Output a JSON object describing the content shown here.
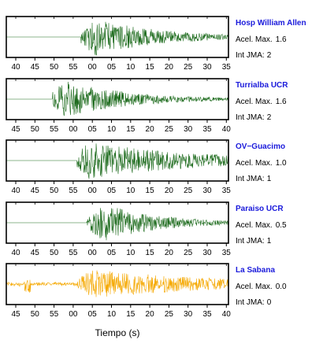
{
  "chart_data": {
    "type": "line",
    "title": "",
    "xlabel": "Tiempo (s)",
    "ylabel": "",
    "grid": false,
    "panels": [
      {
        "station": "Hosp William Allen",
        "name_color": "#1a1adb",
        "trace_color": "#1d6b1d",
        "accel_label": "Acel. Max.",
        "accel_value": "1.6",
        "jma_label": "Int JMA:",
        "jma_value": "2",
        "tick_labels": [
          "40",
          "45",
          "50",
          "55",
          "00",
          "05",
          "10",
          "15",
          "20",
          "25",
          "30",
          "35"
        ],
        "onset_tick": 3.4,
        "peak_tick": 4.1,
        "decay_ticks": 3.5,
        "amplitude": 0.95,
        "pre_noise": 0.0,
        "tail_noise": 0.03
      },
      {
        "station": "Turrialba UCR",
        "name_color": "#1a1adb",
        "trace_color": "#1d6b1d",
        "accel_label": "Acel. Max.",
        "accel_value": "1.6",
        "jma_label": "Int JMA:",
        "jma_value": "2",
        "tick_labels": [
          "45",
          "50",
          "55",
          "00",
          "05",
          "10",
          "15",
          "20",
          "25",
          "30",
          "35",
          "40"
        ],
        "onset_tick": 1.9,
        "peak_tick": 2.5,
        "decay_ticks": 3.5,
        "amplitude": 0.95,
        "pre_noise": 0.0,
        "tail_noise": 0.03
      },
      {
        "station": "OV−Guacimo",
        "name_color": "#1a1adb",
        "trace_color": "#1d6b1d",
        "accel_label": "Acel. Max.",
        "accel_value": "1.0",
        "jma_label": "Int JMA:",
        "jma_value": "1",
        "tick_labels": [
          "40",
          "45",
          "50",
          "55",
          "00",
          "05",
          "10",
          "15",
          "20",
          "25",
          "30",
          "35"
        ],
        "onset_tick": 3.2,
        "peak_tick": 3.8,
        "decay_ticks": 6.0,
        "amplitude": 0.95,
        "pre_noise": 0.0,
        "tail_noise": 0.08
      },
      {
        "station": "Paraiso UCR",
        "name_color": "#1a1adb",
        "trace_color": "#1d6b1d",
        "accel_label": "Acel. Max.",
        "accel_value": "0.5",
        "jma_label": "Int JMA:",
        "jma_value": "1",
        "tick_labels": [
          "40",
          "45",
          "50",
          "55",
          "00",
          "05",
          "10",
          "15",
          "20",
          "25",
          "30",
          "35"
        ],
        "onset_tick": 3.7,
        "peak_tick": 4.6,
        "decay_ticks": 3.0,
        "amplitude": 0.95,
        "pre_noise": 0.0,
        "tail_noise": 0.03
      },
      {
        "station": "La Sabana",
        "name_color": "#1a1adb",
        "trace_color": "#f5a800",
        "accel_label": "Acel. Max.",
        "accel_value": "0.0",
        "jma_label": "Int JMA:",
        "jma_value": "0",
        "tick_labels": [
          "45",
          "50",
          "55",
          "00",
          "05",
          "10",
          "15",
          "20",
          "25",
          "30",
          "35",
          "40"
        ],
        "onset_tick": 3.2,
        "peak_tick": 4.0,
        "decay_ticks": 7.0,
        "amplitude": 0.75,
        "pre_noise": 0.12,
        "tail_noise": 0.12
      }
    ]
  }
}
